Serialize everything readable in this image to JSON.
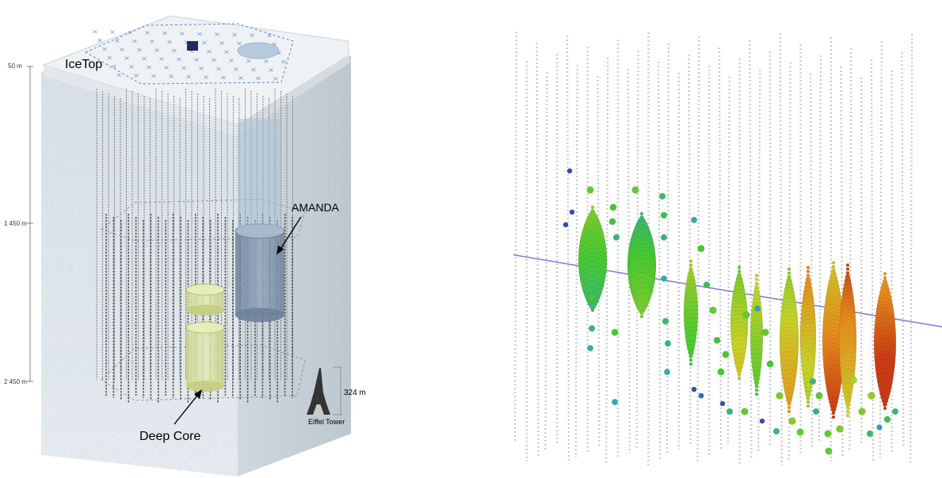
{
  "detector_diagram": {
    "labels": {
      "icetop": "IceTop",
      "amanda": "AMANDA",
      "deep_core": "Deep Core",
      "eiffel_tower": "Eiffel Tower",
      "eiffel_height": "324 m"
    },
    "depths": [
      "50 m",
      "1 450 m",
      "2 450 m"
    ],
    "colors": {
      "ice": "#dde6ec",
      "surface": "#eef2f5",
      "amanda": "#7f95b0",
      "deep_core": "#d9e2a0",
      "string": "#6d6d6d"
    }
  },
  "event_display": {
    "colors": {
      "track": "#7f79d8",
      "early": "#3a3fb5",
      "mid": "#3ecb2e",
      "late": "#e0641e",
      "inactive": "#c9c9c9"
    }
  }
}
